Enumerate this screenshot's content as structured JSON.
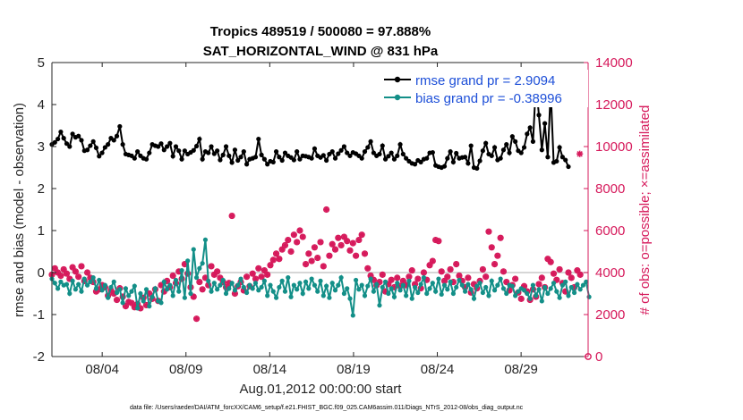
{
  "chart_data": {
    "type": "line",
    "title": "Tropics 489519 / 500080 = 97.888%",
    "subtitle": "SAT_HORIZONTAL_WIND @ 831 hPa",
    "xlabel": "Aug.01,2012 00:00:00 start",
    "ylabel": "rmse and bias (model - observation)",
    "y2label": "# of obs: o=possible; ×=assimilated",
    "xlim": [
      1,
      33
    ],
    "ylim": [
      -2,
      5
    ],
    "y2lim": [
      0,
      14000
    ],
    "x_ticks": [
      {
        "x": 4,
        "label": "08/04"
      },
      {
        "x": 9,
        "label": "08/09"
      },
      {
        "x": 14,
        "label": "08/14"
      },
      {
        "x": 19,
        "label": "08/19"
      },
      {
        "x": 24,
        "label": "08/24"
      },
      {
        "x": 29,
        "label": "08/29"
      }
    ],
    "y_ticks": [
      "-2",
      "-1",
      "0",
      "1",
      "2",
      "3",
      "4",
      "5"
    ],
    "y2_ticks": [
      "0",
      "2000",
      "4000",
      "6000",
      "8000",
      "10000",
      "12000",
      "14000"
    ],
    "grid": false,
    "legend_position": "top-right",
    "legend": [
      "rmse grand pr = 2.9094",
      "bias grand pr = -0.38996"
    ],
    "colors": {
      "rmse": "#000000",
      "bias": "#138f88",
      "obs": "#d6195b",
      "zero_line": "#c8c8c8",
      "legend_text": "#1d4fd8"
    },
    "series": [
      {
        "name": "rmse",
        "axis": "left",
        "values": [
          3.05,
          3.1,
          3.18,
          3.35,
          3.2,
          3.07,
          3.0,
          3.3,
          3.22,
          3.25,
          3.15,
          2.9,
          2.92,
          3.02,
          3.12,
          2.97,
          2.77,
          2.85,
          2.98,
          3.05,
          3.2,
          3.15,
          3.25,
          3.48,
          3.05,
          2.82,
          2.8,
          2.78,
          2.72,
          2.88,
          2.78,
          2.72,
          2.7,
          2.85,
          3.05,
          3.02,
          3.0,
          3.07,
          2.92,
          3.0,
          3.08,
          2.77,
          3.0,
          2.9,
          2.7,
          2.9,
          2.82,
          2.86,
          2.91,
          3.01,
          3.18,
          2.7,
          2.88,
          2.85,
          3.0,
          2.83,
          2.9,
          2.68,
          2.8,
          3.0,
          2.78,
          2.62,
          2.92,
          2.67,
          2.75,
          2.88,
          2.58,
          2.7,
          2.72,
          2.75,
          3.18,
          2.8,
          2.7,
          2.58,
          2.65,
          2.63,
          2.88,
          2.75,
          2.67,
          2.85,
          2.78,
          2.74,
          2.68,
          2.88,
          2.7,
          2.78,
          2.77,
          2.75,
          2.72,
          2.95,
          2.78,
          2.74,
          2.79,
          2.67,
          2.82,
          2.88,
          2.72,
          2.83,
          2.91,
          3.0,
          2.85,
          2.78,
          2.86,
          2.83,
          2.78,
          2.72,
          2.88,
          2.98,
          3.12,
          2.85,
          2.78,
          2.82,
          3.02,
          2.7,
          2.77,
          2.85,
          2.7,
          2.78,
          3.05,
          2.82,
          2.72,
          2.65,
          2.6,
          2.58,
          2.67,
          2.63,
          2.7,
          2.72,
          2.85,
          2.86,
          2.55,
          2.52,
          2.5,
          2.53,
          2.72,
          2.88,
          2.63,
          2.84,
          2.72,
          2.74,
          2.75,
          2.6,
          3.02,
          2.5,
          2.48,
          2.66,
          2.9,
          3.08,
          2.82,
          2.78,
          2.98,
          2.68,
          2.72,
          2.92,
          3.05,
          2.85,
          3.24,
          3.12,
          2.9,
          2.85,
          2.98,
          3.3,
          3.45,
          3.12,
          4.5,
          3.75,
          2.92,
          3.55,
          2.75,
          4.35,
          2.62,
          2.65,
          2.98,
          2.75,
          2.68,
          2.52
        ]
      },
      {
        "name": "bias",
        "axis": "left",
        "values": [
          -0.15,
          -0.25,
          -0.38,
          -0.22,
          -0.3,
          -0.28,
          -0.5,
          -0.2,
          -0.4,
          -0.28,
          -0.45,
          -0.15,
          -0.3,
          -0.22,
          -0.12,
          -0.38,
          -0.18,
          -0.42,
          -0.3,
          -0.6,
          -0.35,
          -0.22,
          -0.48,
          -0.4,
          -0.72,
          -0.38,
          -0.55,
          -0.45,
          -0.32,
          -0.85,
          -0.5,
          -0.68,
          -0.4,
          -0.8,
          -0.58,
          -0.38,
          -0.68,
          -0.72,
          -0.22,
          -0.4,
          -0.3,
          -0.55,
          -0.18,
          -0.45,
          0.05,
          -0.6,
          0.28,
          -0.5,
          0.55,
          -0.12,
          0.1,
          0.22,
          0.78,
          -0.2,
          -0.45,
          -0.25,
          -0.4,
          -0.3,
          -0.18,
          -0.5,
          -0.38,
          -0.25,
          -0.42,
          -0.3,
          -0.15,
          -0.35,
          -0.48,
          -0.3,
          -0.38,
          -0.25,
          -0.42,
          -0.35,
          -0.2,
          -0.55,
          -0.3,
          -0.45,
          -0.6,
          -0.35,
          -0.2,
          -0.45,
          -0.12,
          -0.58,
          -0.3,
          -0.4,
          -0.25,
          -0.5,
          -0.22,
          -0.38,
          -0.15,
          -0.3,
          -0.45,
          -0.2,
          -0.55,
          -0.32,
          -0.6,
          -0.25,
          -0.42,
          -0.3,
          -0.12,
          -0.5,
          -0.38,
          -0.62,
          -1.02,
          -0.18,
          -0.4,
          -0.3,
          -0.55,
          -0.32,
          -0.15,
          -0.45,
          -0.28,
          -0.78,
          -0.35,
          -0.22,
          -0.5,
          -0.38,
          -0.58,
          -0.25,
          -0.42,
          -0.3,
          -0.55,
          -0.2,
          -0.62,
          -0.35,
          -0.48,
          -0.28,
          -0.12,
          -0.5,
          -0.38,
          -0.25,
          -0.45,
          -0.15,
          -0.52,
          -0.3,
          -0.4,
          -0.22,
          -0.5,
          -0.35,
          -0.18,
          -0.3,
          -0.45,
          -0.28,
          -0.4,
          -0.62,
          -0.32,
          -0.25,
          -0.48,
          -0.35,
          -0.55,
          -0.2,
          -0.42,
          -0.3,
          -0.15,
          -0.38,
          -0.5,
          -0.3,
          -0.32,
          -0.55,
          -0.45,
          -0.38,
          -0.42,
          -0.5,
          -0.62,
          -0.3,
          -0.55,
          -0.4,
          -0.68,
          -0.35,
          -0.5,
          -0.38,
          -0.25,
          -0.45,
          -0.6,
          -0.3,
          -0.22,
          -0.55,
          -0.35,
          -0.48,
          -0.28,
          -0.4,
          -0.3,
          -0.22,
          -0.58
        ]
      },
      {
        "name": "obs_possible",
        "axis": "right",
        "values": [
          3900,
          4200,
          4000,
          3850,
          4150,
          3950,
          3700,
          4250,
          4050,
          3800,
          4300,
          3600,
          4000,
          3750,
          3550,
          3100,
          3200,
          3400,
          3300,
          2900,
          3150,
          3000,
          2700,
          3250,
          2850,
          2400,
          2600,
          2550,
          2350,
          2500,
          2300,
          2800,
          2450,
          3000,
          2750,
          3200,
          2650,
          3400,
          3100,
          3600,
          3300,
          3850,
          3500,
          4050,
          3700,
          4400,
          3950,
          3300,
          2850,
          1800,
          3550,
          3200,
          3750,
          3400,
          4300,
          3900,
          4050,
          3750,
          3550,
          3300,
          3500,
          6700,
          3000,
          3350,
          3550,
          3150,
          3800,
          3350,
          3950,
          3700,
          4200,
          3800,
          4100,
          3900,
          4350,
          4600,
          4900,
          4650,
          5100,
          5300,
          5550,
          5000,
          5800,
          5450,
          6000,
          5700,
          4400,
          4900,
          4550,
          5200,
          4700,
          5450,
          4300,
          7000,
          4800,
          5350,
          5100,
          5650,
          5300,
          5700,
          5500,
          5050,
          5400,
          4800,
          5550,
          5800,
          4900,
          4200,
          3850,
          3650,
          3400,
          3550,
          3900,
          3100,
          3450,
          3650,
          3300,
          3750,
          3350,
          3600,
          3400,
          3800,
          4100,
          3450,
          3700,
          3250,
          4000,
          3650,
          4350,
          4550,
          5550,
          5500,
          4050,
          3600,
          3800,
          4150,
          3550,
          4400,
          3850,
          3600,
          3300,
          3750,
          3050,
          3450,
          3250,
          3600,
          4150,
          3800,
          5950,
          5200,
          4400,
          4800,
          5650,
          4050,
          3550,
          3150,
          3400,
          3700,
          3050,
          2750,
          3350,
          3100,
          2700,
          3200,
          2850,
          3450,
          3750,
          3300,
          4650,
          4500,
          3950,
          3650,
          4150,
          3500,
          3100,
          4000,
          3750,
          3300,
          4100,
          3900
        ]
      },
      {
        "name": "obs_assimilated",
        "axis": "right",
        "values": [
          3900,
          4200,
          4000,
          3850,
          4150,
          3950,
          3700,
          4250,
          4050,
          3800,
          4300,
          3600,
          4000,
          3750,
          3550,
          3100,
          3200,
          3400,
          3300,
          2900,
          3150,
          3000,
          2700,
          3250,
          2850,
          2400,
          2600,
          2550,
          2350,
          2500,
          2300,
          2800,
          2450,
          3000,
          2750,
          3200,
          2650,
          3400,
          3100,
          3600,
          3300,
          3850,
          3500,
          4050,
          3700,
          4400,
          3950,
          3300,
          2850,
          1800,
          3550,
          3200,
          3750,
          3400,
          4300,
          3900,
          4050,
          3750,
          3550,
          3300,
          3500,
          6700,
          3000,
          3350,
          3550,
          3150,
          3800,
          3350,
          3950,
          3700,
          4200,
          3800,
          4100,
          3900,
          4350,
          4600,
          4900,
          4650,
          5100,
          5300,
          5550,
          5000,
          5800,
          5450,
          6000,
          5700,
          4400,
          4900,
          4550,
          5200,
          4700,
          5450,
          4300,
          7000,
          4800,
          5350,
          5100,
          5650,
          5300,
          5700,
          5500,
          5050,
          5400,
          4800,
          5550,
          5800,
          4900,
          4200,
          3850,
          3650,
          3400,
          3550,
          3900,
          3100,
          3450,
          3650,
          3300,
          3750,
          3350,
          3600,
          3400,
          3800,
          4100,
          3450,
          3700,
          3250,
          4000,
          3650,
          4350,
          4550,
          5550,
          5500,
          4050,
          3600,
          3800,
          4150,
          3550,
          4400,
          3850,
          3600,
          3300,
          3750,
          3050,
          3450,
          3250,
          3600,
          4150,
          3800,
          5950,
          5200,
          4400,
          4800,
          5650,
          4050,
          3550,
          3150,
          3400,
          3700,
          3050,
          2750,
          3350,
          3100,
          2700,
          3200,
          2850,
          3450,
          3750,
          3300,
          4650,
          4500,
          3950,
          3650,
          4150,
          3500,
          3100,
          4000,
          3750,
          3300,
          4100,
          3900
        ]
      }
    ],
    "extra_points": [
      {
        "series": "obs_assimilated",
        "x": 32.5,
        "value": 9650
      },
      {
        "series": "obs_possible",
        "x": 33.0,
        "value": 0
      }
    ],
    "footnote": "data file: /Users/raeder/DAI/ATM_forcXX/CAM6_setup/f.e21.FHIST_BGC.f09_025.CAM6assim.011/Diags_NTrS_2012-08/obs_diag_output.nc"
  }
}
